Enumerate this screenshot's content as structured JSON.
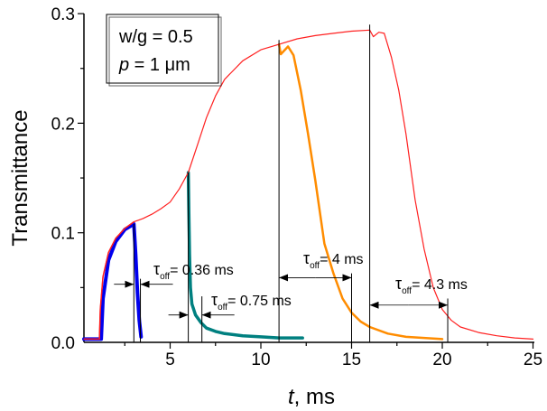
{
  "chart_data": {
    "type": "line",
    "xlabel": "t, ms",
    "ylabel": "Transmittance",
    "xlim": [
      0.25,
      25
    ],
    "ylim": [
      0,
      0.3
    ],
    "xticks": [
      5,
      10,
      15,
      20,
      25
    ],
    "yticks": [
      "0.0",
      "0.1",
      "0.2",
      "0.3"
    ],
    "grid": false,
    "legend_box": {
      "line1": "w/g = 0.5",
      "line2_var": "p",
      "line2_rest": " = 1 μm"
    },
    "series": [
      {
        "color": "#ff2020",
        "x": [
          0.25,
          1.1,
          1.15,
          1.3,
          1.6,
          2,
          2.5,
          3,
          3.5,
          4,
          4.5,
          5,
          5.5,
          6,
          6.5,
          7,
          7.5,
          8,
          9,
          10,
          11,
          12,
          13,
          14,
          15,
          16,
          16.2,
          16.5,
          16.8,
          17.2,
          17.6,
          18,
          18.5,
          19,
          19.5,
          20,
          20.5,
          21,
          22,
          23,
          24,
          25
        ],
        "y": [
          0.003,
          0.003,
          0.03,
          0.06,
          0.082,
          0.095,
          0.104,
          0.11,
          0.113,
          0.117,
          0.122,
          0.128,
          0.14,
          0.155,
          0.18,
          0.205,
          0.225,
          0.24,
          0.257,
          0.267,
          0.272,
          0.277,
          0.28,
          0.282,
          0.284,
          0.285,
          0.279,
          0.283,
          0.282,
          0.26,
          0.23,
          0.19,
          0.13,
          0.085,
          0.05,
          0.03,
          0.02,
          0.014,
          0.009,
          0.006,
          0.004,
          0.003
        ]
      },
      {
        "color": "#ff8c00",
        "x": [
          11,
          11.1,
          11.5,
          11.8,
          12.2,
          12.6,
          13,
          13.5,
          14,
          14.5,
          15,
          15.5,
          16,
          17,
          18,
          19,
          20
        ],
        "y": [
          0.272,
          0.263,
          0.27,
          0.262,
          0.23,
          0.19,
          0.148,
          0.09,
          0.063,
          0.04,
          0.027,
          0.019,
          0.014,
          0.008,
          0.005,
          0.004,
          0.003
        ]
      },
      {
        "color": "#008080",
        "x": [
          6,
          6.03,
          6.07,
          6.12,
          6.2,
          6.4,
          6.7,
          7,
          7.5,
          8,
          9,
          10,
          11,
          12.3
        ],
        "y": [
          0.155,
          0.12,
          0.08,
          0.05,
          0.035,
          0.025,
          0.018,
          0.013,
          0.01,
          0.008,
          0.006,
          0.005,
          0.004,
          0.004
        ]
      },
      {
        "color": "#0000ee",
        "x": [
          0.25,
          1.2,
          1.3,
          1.6,
          2,
          2.5,
          3,
          3.1,
          3.2,
          3.3,
          3.4
        ],
        "y": [
          0.003,
          0.003,
          0.04,
          0.075,
          0.092,
          0.103,
          0.108,
          0.08,
          0.045,
          0.02,
          0.005
        ]
      }
    ],
    "annotations": [
      {
        "label": "τ",
        "sub": "off",
        "value": "= 0.36 ms",
        "t1": 3,
        "t2": 3.36
      },
      {
        "label": "τ",
        "sub": "off",
        "value": "= 0.75 ms",
        "t1": 6,
        "t2": 6.75
      },
      {
        "label": "τ",
        "sub": "off",
        "value": "= 4 ms",
        "t1": 11,
        "t2": 15
      },
      {
        "label": "τ",
        "sub": "off",
        "value": "= 4.3 ms",
        "t1": 16,
        "t2": 20.3
      }
    ]
  }
}
